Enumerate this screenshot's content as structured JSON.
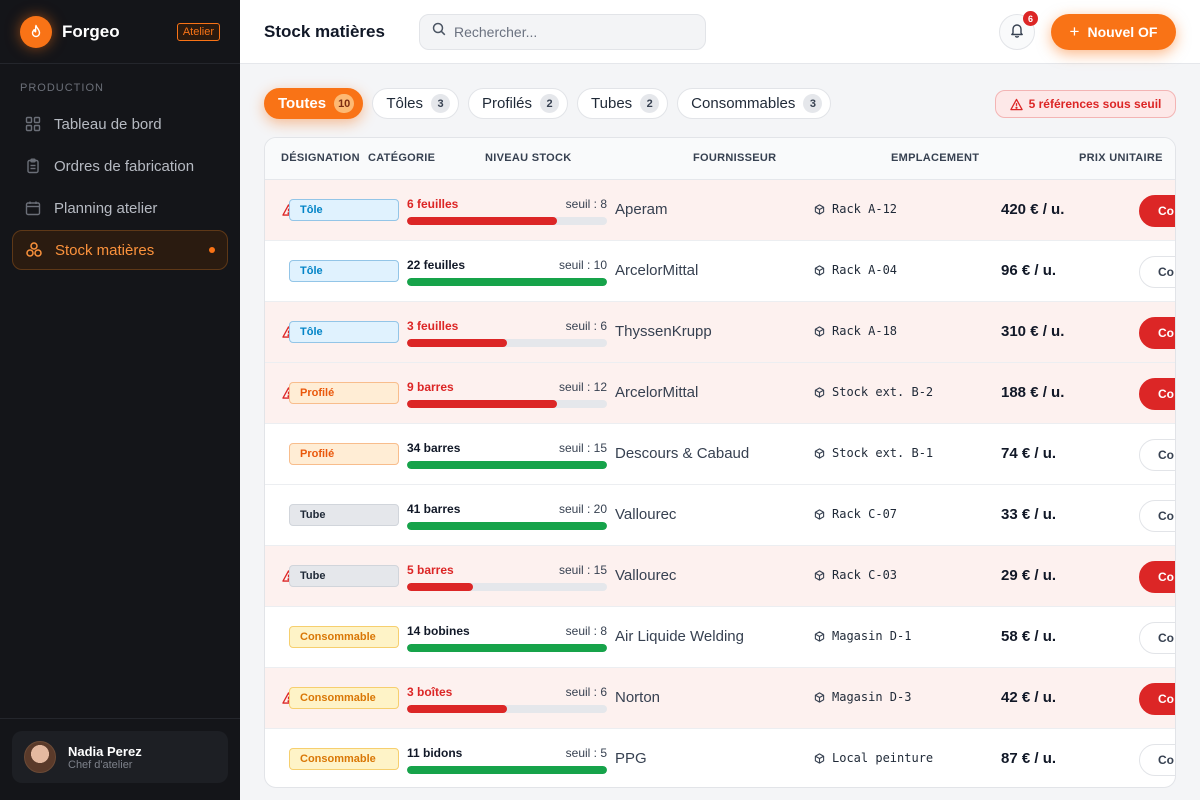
{
  "app": {
    "name": "Forgeo",
    "badge": "Atelier"
  },
  "sidebar": {
    "section": "PRODUCTION",
    "items": [
      {
        "label": "Tableau de bord",
        "icon": "dashboard-icon"
      },
      {
        "label": "Ordres de fabrication",
        "icon": "clipboard-icon"
      },
      {
        "label": "Planning atelier",
        "icon": "calendar-icon"
      },
      {
        "label": "Stock matières",
        "icon": "stock-icon",
        "active": true
      }
    ],
    "user": {
      "name": "Nadia Perez",
      "role": "Chef d'atelier"
    }
  },
  "header": {
    "title": "Stock matières",
    "search_placeholder": "Rechercher...",
    "notifications": "6",
    "new_button": "Nouvel OF"
  },
  "filters": [
    {
      "label": "Toutes",
      "count": "10",
      "active": true
    },
    {
      "label": "Tôles",
      "count": "3"
    },
    {
      "label": "Profilés",
      "count": "2"
    },
    {
      "label": "Tubes",
      "count": "2"
    },
    {
      "label": "Consommables",
      "count": "3"
    }
  ],
  "alert": "5 références sous seuil",
  "table": {
    "columns": [
      "DÉSIGNATION",
      "CATÉGORIE",
      "NIVEAU STOCK",
      "FOURNISSEUR",
      "EMPLACEMENT",
      "PRIX UNITAIRE"
    ],
    "rows": [
      {
        "category": "Tôle",
        "cat_class": "tole",
        "qty": "6 feuilles",
        "seuil": "seuil : 8",
        "level": 0.75,
        "supplier": "Aperam",
        "location": "Rack A-12",
        "price": "420 € / u.",
        "low": true,
        "action": "Co"
      },
      {
        "category": "Tôle",
        "cat_class": "tole",
        "qty": "22 feuilles",
        "seuil": "seuil : 10",
        "level": 1.0,
        "supplier": "ArcelorMittal",
        "location": "Rack A-04",
        "price": "96 € / u.",
        "low": false,
        "action": "Co"
      },
      {
        "category": "Tôle",
        "cat_class": "tole",
        "qty": "3 feuilles",
        "seuil": "seuil : 6",
        "level": 0.5,
        "supplier": "ThyssenKrupp",
        "location": "Rack A-18",
        "price": "310 € / u.",
        "low": true,
        "action": "Co"
      },
      {
        "category": "Profilé",
        "cat_class": "profile",
        "qty": "9 barres",
        "seuil": "seuil : 12",
        "level": 0.75,
        "supplier": "ArcelorMittal",
        "location": "Stock ext. B-2",
        "price": "188 € / u.",
        "low": true,
        "action": "Co"
      },
      {
        "category": "Profilé",
        "cat_class": "profile",
        "qty": "34 barres",
        "seuil": "seuil : 15",
        "level": 1.0,
        "supplier": "Descours & Cabaud",
        "location": "Stock ext. B-1",
        "price": "74 € / u.",
        "low": false,
        "action": "Co"
      },
      {
        "category": "Tube",
        "cat_class": "tube",
        "qty": "41 barres",
        "seuil": "seuil : 20",
        "level": 1.0,
        "supplier": "Vallourec",
        "location": "Rack C-07",
        "price": "33 € / u.",
        "low": false,
        "action": "Co"
      },
      {
        "category": "Tube",
        "cat_class": "tube",
        "qty": "5 barres",
        "seuil": "seuil : 15",
        "level": 0.33,
        "supplier": "Vallourec",
        "location": "Rack C-03",
        "price": "29 € / u.",
        "low": true,
        "action": "Co"
      },
      {
        "category": "Consommable",
        "cat_class": "conso",
        "qty": "14 bobines",
        "seuil": "seuil : 8",
        "level": 1.0,
        "supplier": "Air Liquide Welding",
        "location": "Magasin D-1",
        "price": "58 € / u.",
        "low": false,
        "action": "Co"
      },
      {
        "category": "Consommable",
        "cat_class": "conso",
        "qty": "3 boîtes",
        "seuil": "seuil : 6",
        "level": 0.5,
        "supplier": "Norton",
        "location": "Magasin D-3",
        "price": "42 € / u.",
        "low": true,
        "action": "Co"
      },
      {
        "category": "Consommable",
        "cat_class": "conso",
        "qty": "11 bidons",
        "seuil": "seuil : 5",
        "level": 1.0,
        "supplier": "PPG",
        "location": "Local peinture",
        "price": "87 € / u.",
        "low": false,
        "action": "Co"
      }
    ]
  },
  "colors": {
    "accent": "#f97316",
    "danger": "#dc2626",
    "ok": "#16a34a"
  }
}
